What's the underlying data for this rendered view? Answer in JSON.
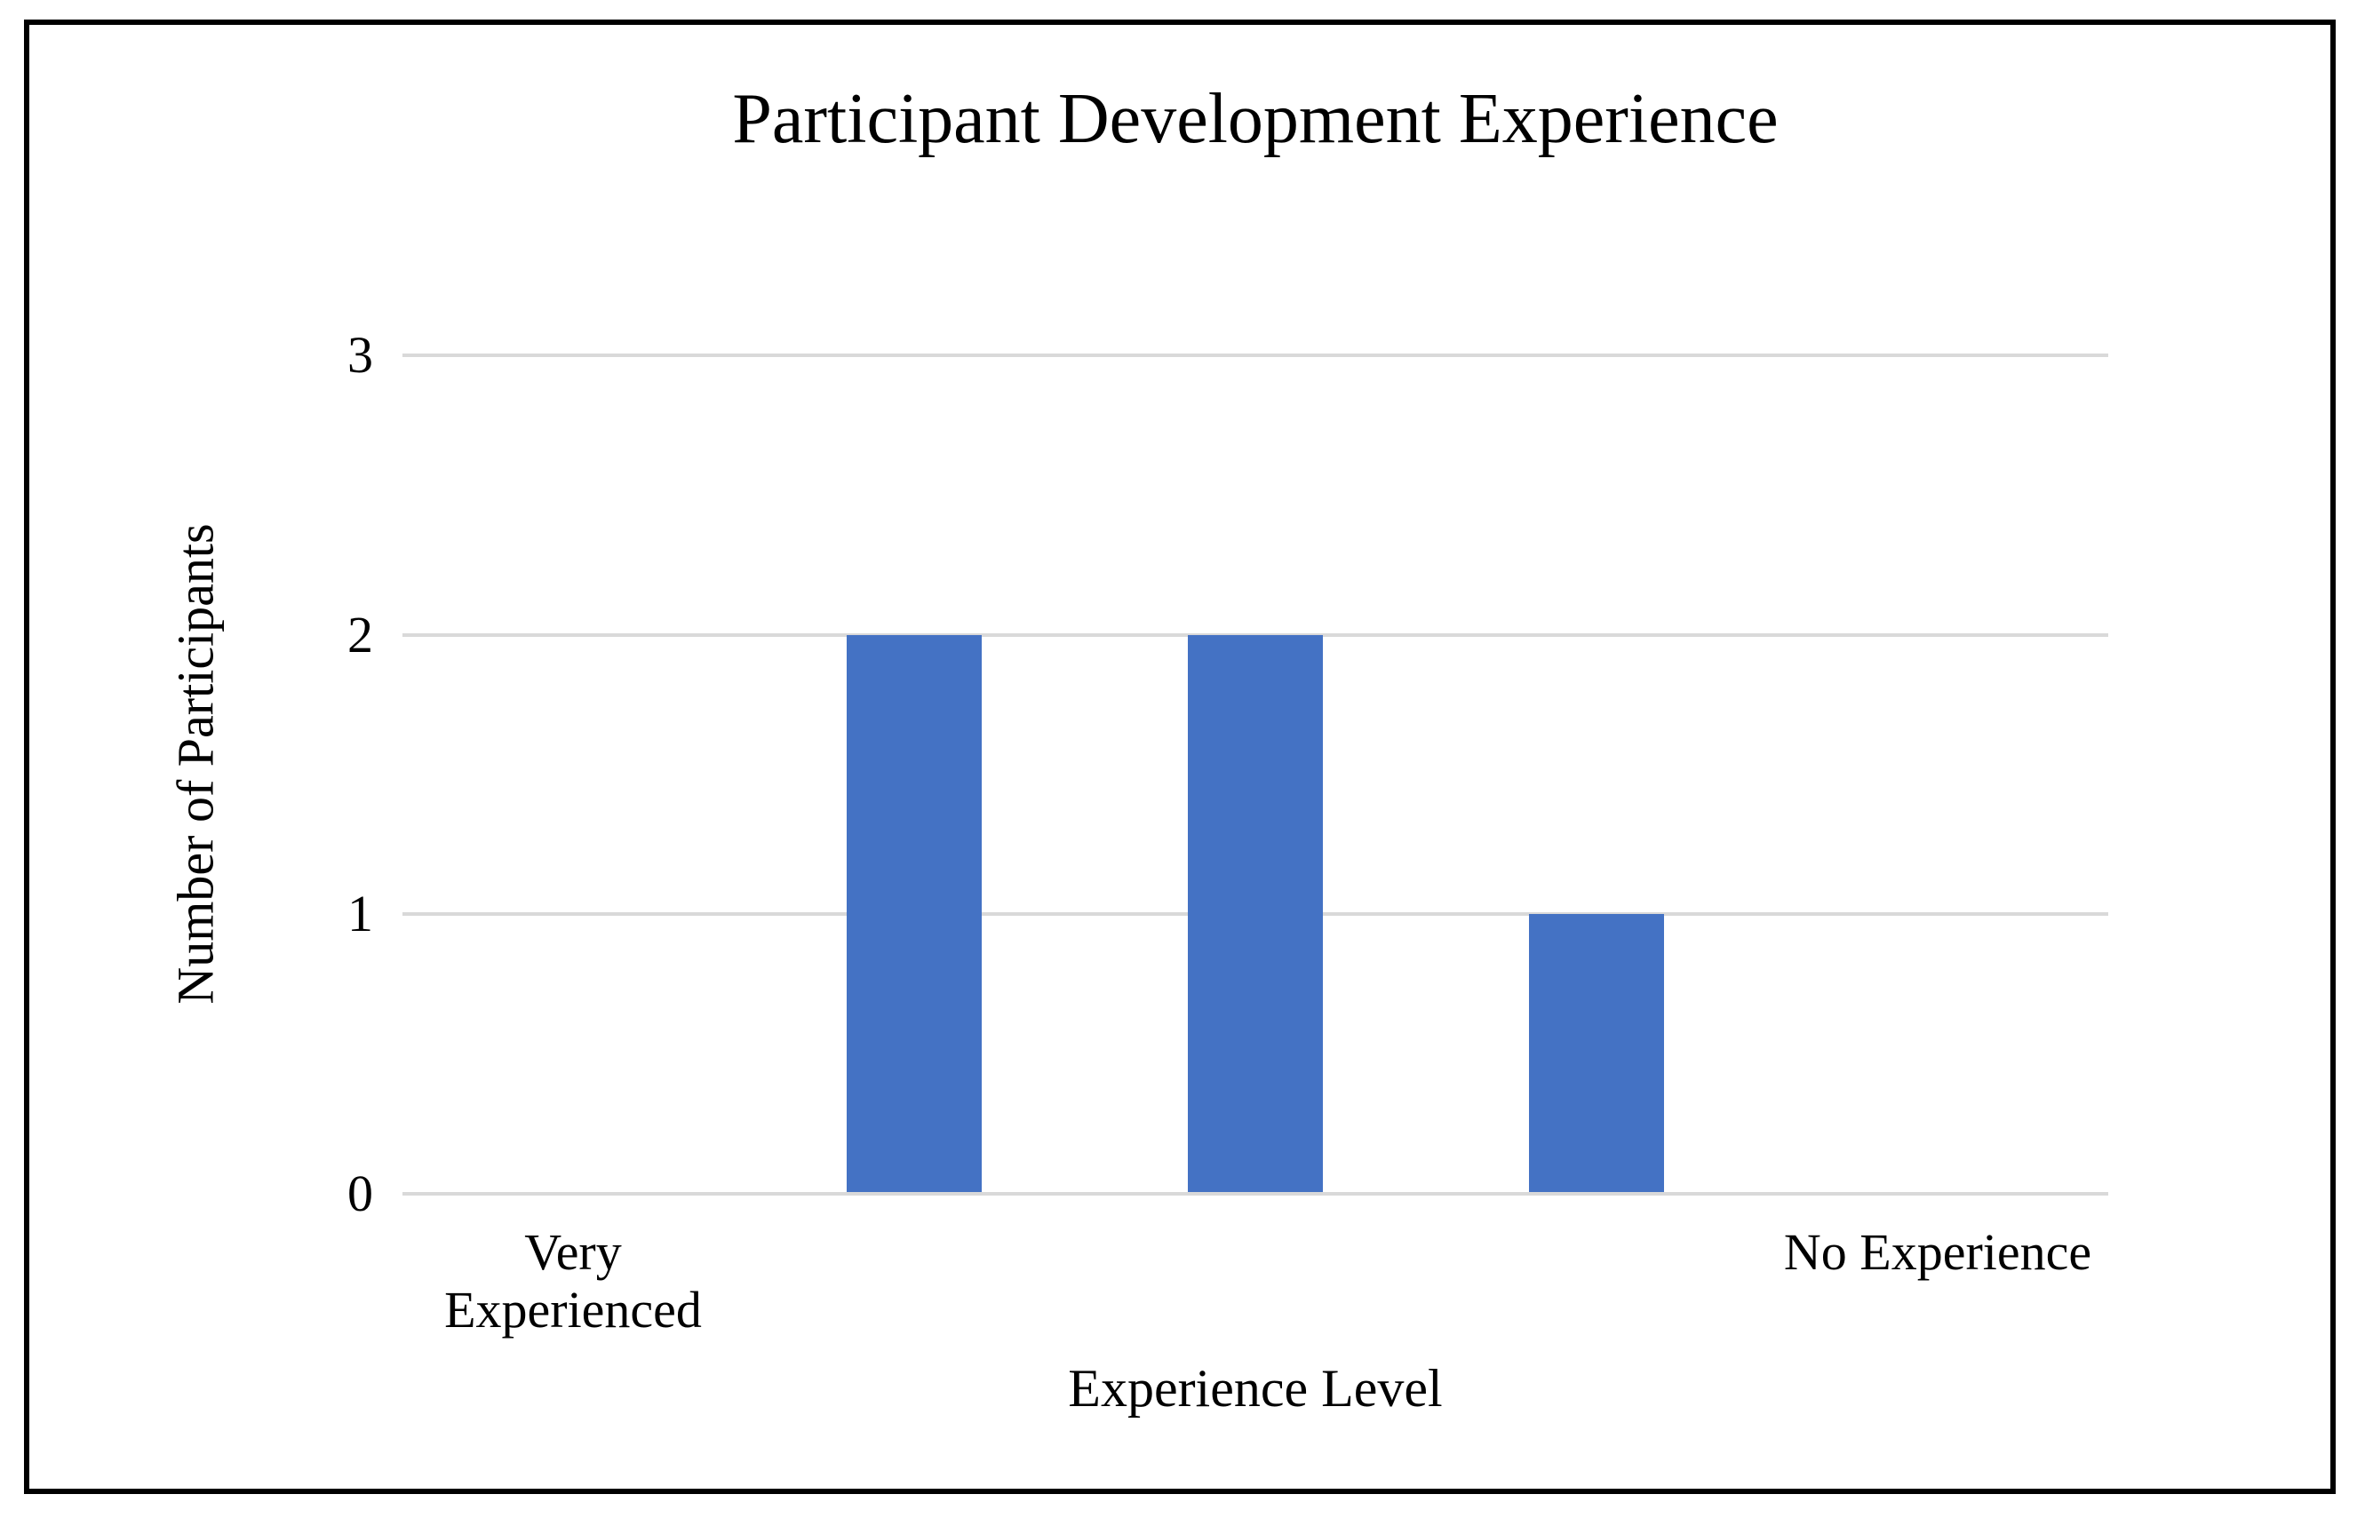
{
  "chart_data": {
    "type": "bar",
    "title": "Participant Development Experience",
    "xlabel": "Experience Level",
    "ylabel": "Number of Participants",
    "categories": [
      "Very Experienced",
      "",
      "",
      "",
      "No Experience"
    ],
    "values": [
      0,
      2,
      2,
      1,
      0
    ],
    "ylim": [
      0,
      3
    ],
    "yticks": [
      0,
      1,
      2,
      3
    ],
    "grid": true,
    "legend_position": "none",
    "colors": {
      "bar": "#4472C4",
      "gridline": "#D9D9D9",
      "text": "#000000",
      "frame_border": "#000000",
      "background": "#FFFFFF"
    }
  }
}
